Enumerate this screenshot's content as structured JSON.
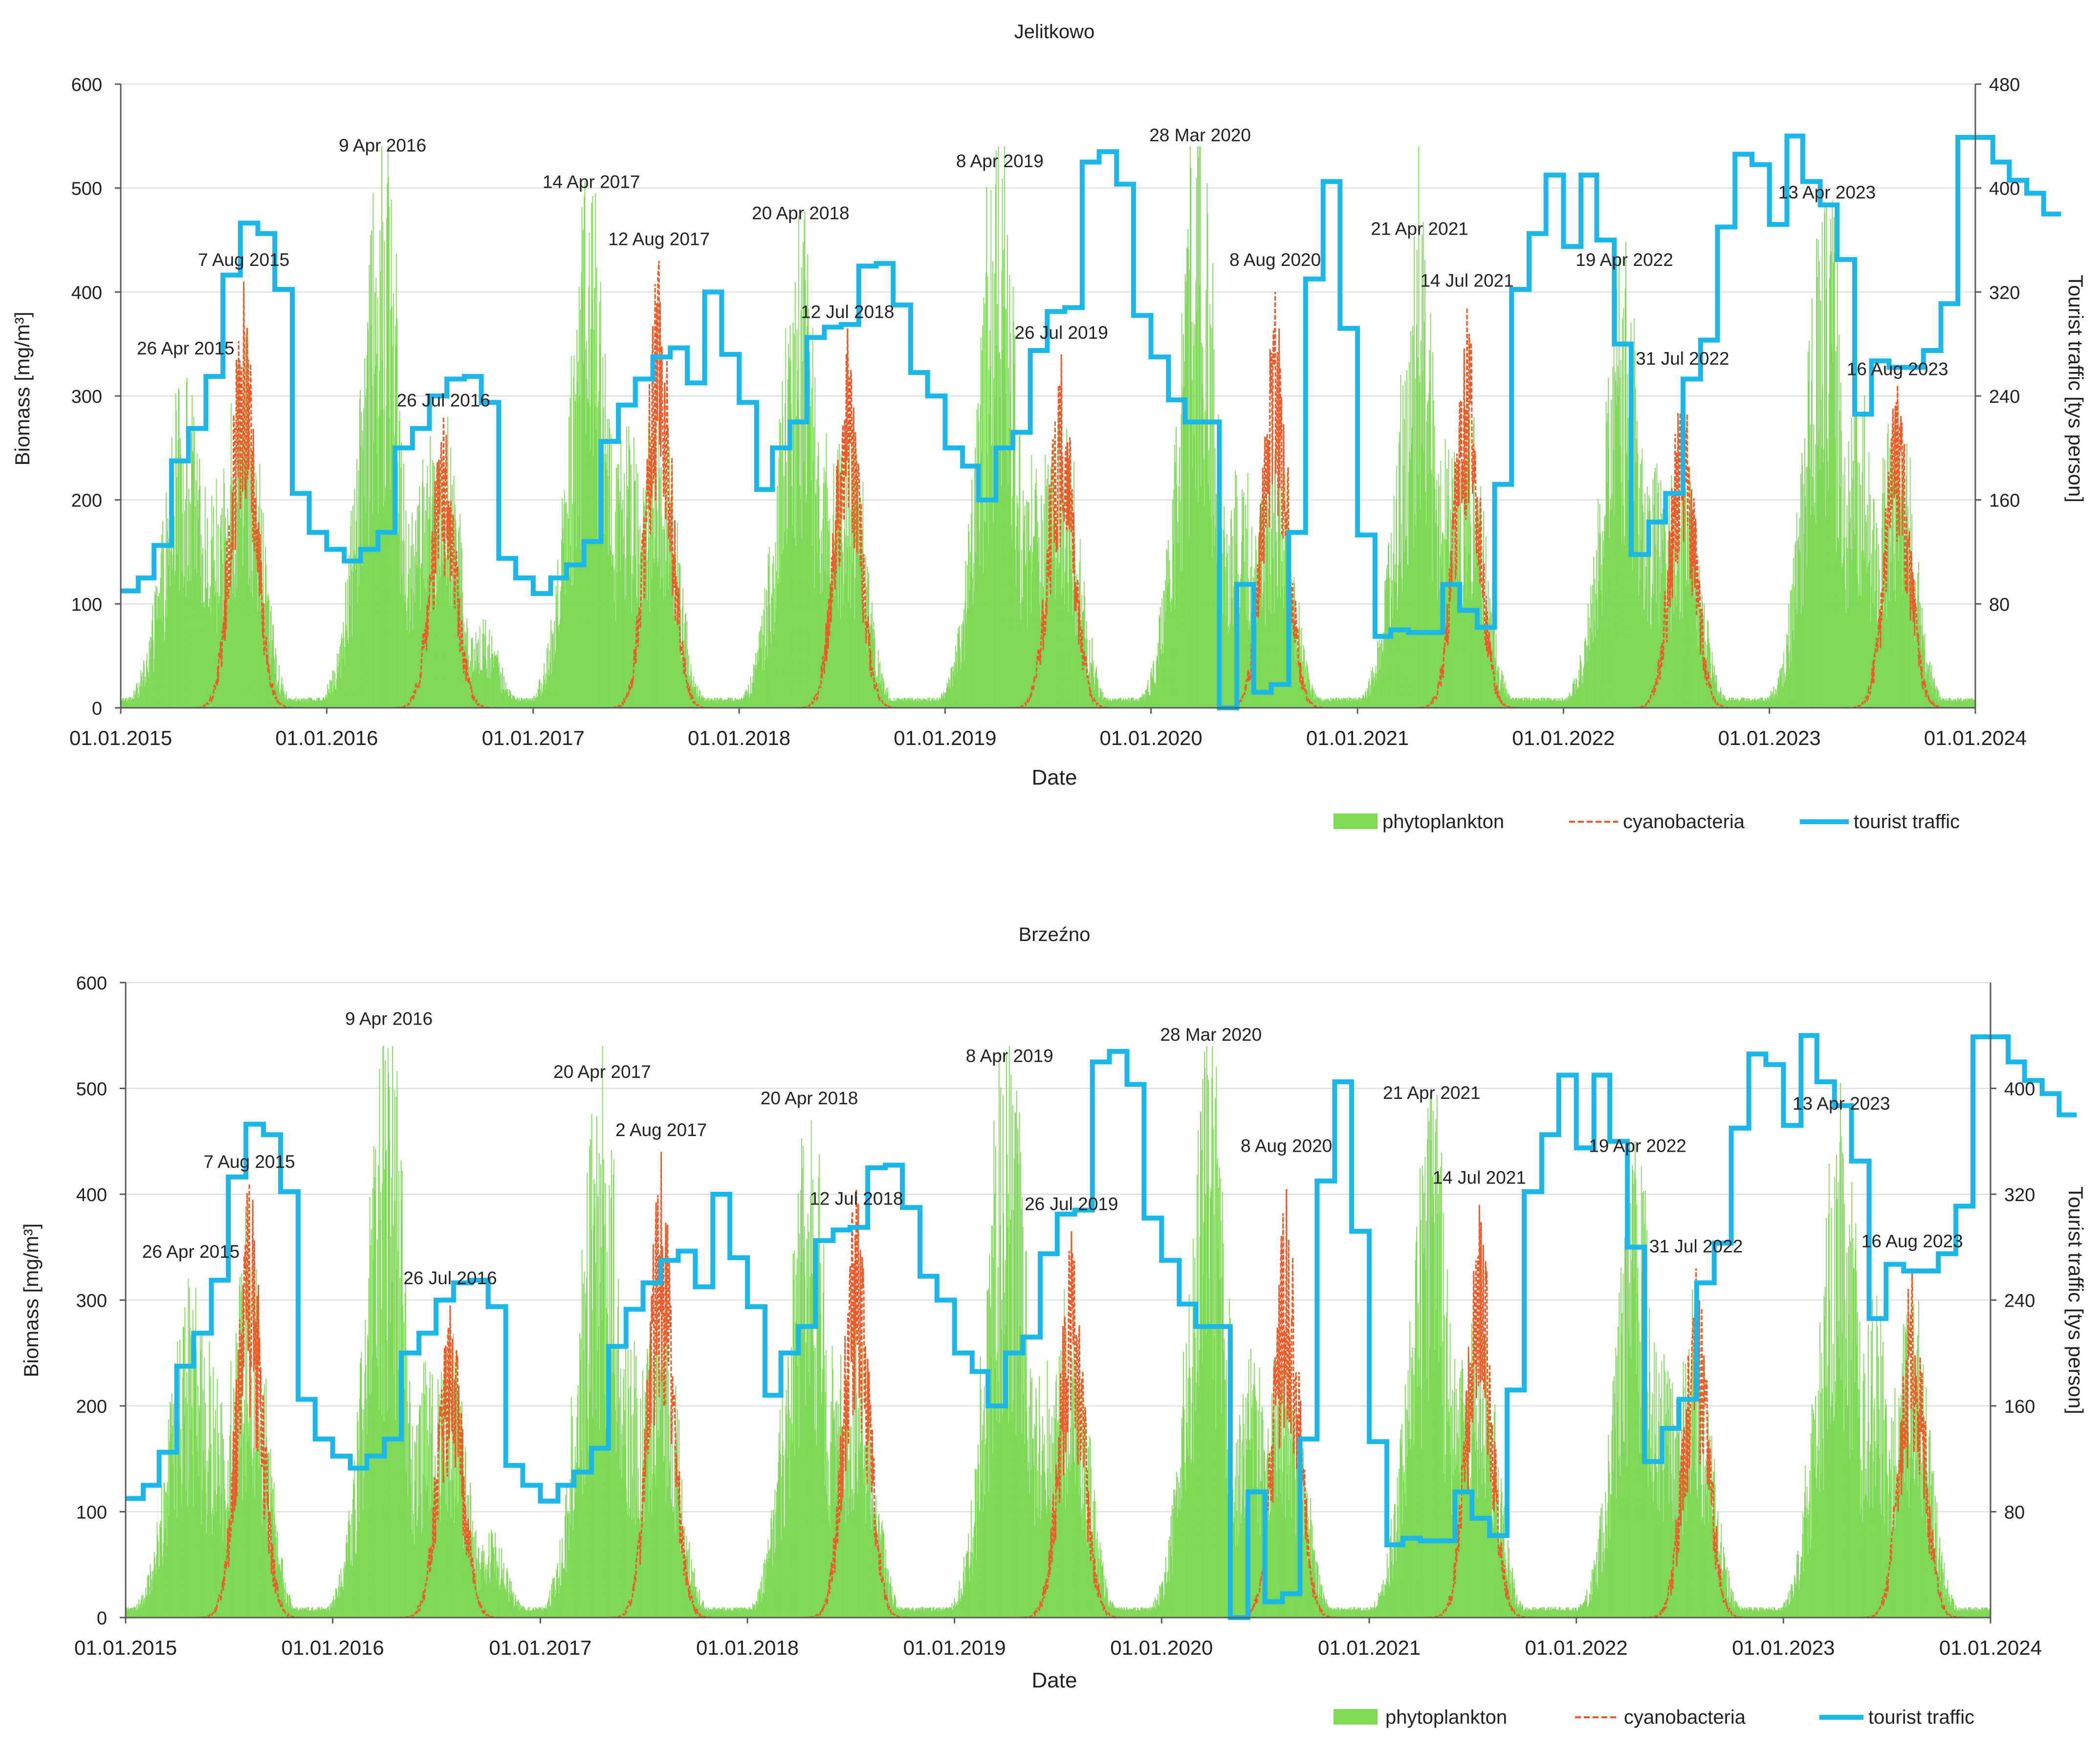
{
  "chart_data": [
    {
      "type": "area",
      "title": "Jelitkowo",
      "xlabel": "Date",
      "ylabel": "Biomass  [mg/m³]",
      "y2label": "Tourist traffic [tys person]",
      "x_ticks": [
        "01.01.2015",
        "01.01.2016",
        "01.01.2017",
        "01.01.2018",
        "01.01.2019",
        "01.01.2020",
        "01.01.2021",
        "01.01.2022",
        "01.01.2023",
        "01.01.2024"
      ],
      "x_range": [
        "2015-01-01",
        "2024-01-01"
      ],
      "ylim": [
        0,
        600
      ],
      "y_ticks": [
        0,
        100,
        200,
        300,
        400,
        500,
        600
      ],
      "y2lim": [
        0,
        480
      ],
      "y2_ticks": [
        80,
        160,
        240,
        320,
        400,
        480
      ],
      "grid": "horizontal",
      "legend_position": "bottom-right",
      "legend": [
        "phytoplankton",
        "cyanobacteria",
        "tourist traffic"
      ],
      "series": [
        {
          "name": "phytoplankton",
          "color": "#7ED957",
          "type": "area",
          "peaks": [
            {
              "date": "2015-04-26",
              "value": 300
            },
            {
              "date": "2015-06-10",
              "value": 210
            },
            {
              "date": "2015-08-07",
              "value": 330
            },
            {
              "date": "2016-04-09",
              "value": 525
            },
            {
              "date": "2016-06-20",
              "value": 230
            },
            {
              "date": "2016-07-26",
              "value": 250
            },
            {
              "date": "2016-10-01",
              "value": 80
            },
            {
              "date": "2017-04-14",
              "value": 490
            },
            {
              "date": "2017-06-15",
              "value": 260
            },
            {
              "date": "2017-08-12",
              "value": 290
            },
            {
              "date": "2018-04-20",
              "value": 450
            },
            {
              "date": "2018-06-10",
              "value": 250
            },
            {
              "date": "2018-07-12",
              "value": 260
            },
            {
              "date": "2019-04-08",
              "value": 500
            },
            {
              "date": "2019-06-15",
              "value": 240
            },
            {
              "date": "2019-07-26",
              "value": 270
            },
            {
              "date": "2020-03-28",
              "value": 525
            },
            {
              "date": "2020-06-10",
              "value": 220
            },
            {
              "date": "2020-08-08",
              "value": 250
            },
            {
              "date": "2021-04-21",
              "value": 435
            },
            {
              "date": "2021-06-10",
              "value": 240
            },
            {
              "date": "2021-07-14",
              "value": 280
            },
            {
              "date": "2022-04-19",
              "value": 415
            },
            {
              "date": "2022-06-10",
              "value": 220
            },
            {
              "date": "2022-07-31",
              "value": 240
            },
            {
              "date": "2023-04-13",
              "value": 470
            },
            {
              "date": "2023-06-10",
              "value": 290
            },
            {
              "date": "2023-08-16",
              "value": 280
            }
          ]
        },
        {
          "name": "cyanobacteria",
          "color": "#F05A28",
          "type": "line",
          "peaks": [
            {
              "date": "2015-08-07",
              "value": 410
            },
            {
              "date": "2016-07-26",
              "value": 280
            },
            {
              "date": "2017-08-12",
              "value": 430
            },
            {
              "date": "2018-07-12",
              "value": 365
            },
            {
              "date": "2019-07-26",
              "value": 340
            },
            {
              "date": "2020-08-08",
              "value": 400
            },
            {
              "date": "2021-07-14",
              "value": 385
            },
            {
              "date": "2022-07-31",
              "value": 315
            },
            {
              "date": "2023-08-16",
              "value": 310
            }
          ]
        },
        {
          "name": "tourist traffic",
          "color": "#1BB7E8",
          "type": "step",
          "monthly": [
            [
              90,
              100,
              125,
              190,
              215,
              255,
              333,
              373,
              365,
              322,
              165,
              135
            ],
            [
              122,
              113,
              122,
              135,
              200,
              215,
              240,
              253,
              255,
              235,
              115,
              100
            ],
            [
              88,
              100,
              110,
              128,
              205,
              233,
              253,
              270,
              277,
              250,
              320,
              272
            ],
            [
              235,
              168,
              200,
              220,
              285,
              293,
              295,
              340,
              342,
              310,
              258,
              240
            ],
            [
              200,
              186,
              160,
              200,
              212,
              275,
              305,
              308,
              420,
              428,
              403,
              302
            ],
            [
              270,
              237,
              220,
              220,
              0,
              95,
              12,
              18,
              135,
              330,
              405,
              292
            ],
            [
              133,
              55,
              60,
              58,
              58,
              95,
              75,
              62,
              172,
              322,
              365,
              410
            ],
            [
              355,
              410,
              360,
              280,
              118,
              143,
              165,
              253,
              283,
              370,
              426,
              418
            ],
            [
              372,
              440,
              405,
              387,
              345,
              226,
              267,
              262,
              262,
              275,
              311,
              439
            ],
            [
              439,
              420,
              406,
              396,
              380
            ]
          ]
        }
      ],
      "annotations": [
        {
          "text": "26 Apr 2015",
          "date": "2015-04-26",
          "value": 340
        },
        {
          "text": "7 Aug 2015",
          "date": "2015-08-07",
          "value": 425
        },
        {
          "text": "9 Apr 2016",
          "date": "2016-04-09",
          "value": 535
        },
        {
          "text": "26 Jul 2016",
          "date": "2016-07-26",
          "value": 290
        },
        {
          "text": "14 Apr 2017",
          "date": "2017-04-14",
          "value": 500
        },
        {
          "text": "12 Aug 2017",
          "date": "2017-08-12",
          "value": 445
        },
        {
          "text": "20 Apr 2018",
          "date": "2018-04-20",
          "value": 470
        },
        {
          "text": "12 Jul 2018",
          "date": "2018-07-12",
          "value": 375
        },
        {
          "text": "8 Apr 2019",
          "date": "2019-04-08",
          "value": 520
        },
        {
          "text": "26 Jul 2019",
          "date": "2019-07-26",
          "value": 355
        },
        {
          "text": "28 Mar 2020",
          "date": "2020-03-28",
          "value": 545
        },
        {
          "text": "8 Aug 2020",
          "date": "2020-08-08",
          "value": 425
        },
        {
          "text": "21 Apr 2021",
          "date": "2021-04-21",
          "value": 455
        },
        {
          "text": "14 Jul 2021",
          "date": "2021-07-14",
          "value": 405
        },
        {
          "text": "19 Apr 2022",
          "date": "2022-04-19",
          "value": 425
        },
        {
          "text": "31 Jul 2022",
          "date": "2022-07-31",
          "value": 330
        },
        {
          "text": "13 Apr 2023",
          "date": "2023-04-13",
          "value": 490
        },
        {
          "text": "16 Aug 2023",
          "date": "2023-08-16",
          "value": 320
        }
      ]
    },
    {
      "type": "area",
      "title": "Brzeźno",
      "xlabel": "Date",
      "ylabel": "Biomass  [mg/m³]",
      "y2label": "Tourist traffic [tys person]",
      "x_ticks": [
        "01.01.2015",
        "01.01.2016",
        "01.01.2017",
        "01.01.2018",
        "01.01.2019",
        "01.01.2020",
        "01.01.2021",
        "01.01.2022",
        "01.01.2023",
        "01.01.2024"
      ],
      "x_range": [
        "2015-01-01",
        "2024-01-01"
      ],
      "ylim": [
        0,
        600
      ],
      "y_ticks": [
        0,
        100,
        200,
        300,
        400,
        500,
        600
      ],
      "y2lim": [
        0,
        480
      ],
      "y2_ticks": [
        80,
        160,
        240,
        320,
        400
      ],
      "grid": "horizontal",
      "legend_position": "bottom-right",
      "legend": [
        "phytoplankton",
        "cyanobacteria",
        "tourist traffic"
      ],
      "series": [
        {
          "name": "phytoplankton",
          "color": "#7ED957",
          "type": "area",
          "peaks": [
            {
              "date": "2015-04-26",
              "value": 300
            },
            {
              "date": "2015-06-10",
              "value": 220
            },
            {
              "date": "2015-08-07",
              "value": 330
            },
            {
              "date": "2016-04-09",
              "value": 540
            },
            {
              "date": "2016-06-20",
              "value": 230
            },
            {
              "date": "2016-07-26",
              "value": 250
            },
            {
              "date": "2016-10-01",
              "value": 80
            },
            {
              "date": "2017-04-20",
              "value": 495
            },
            {
              "date": "2017-06-15",
              "value": 250
            },
            {
              "date": "2017-08-02",
              "value": 290
            },
            {
              "date": "2018-04-20",
              "value": 470
            },
            {
              "date": "2018-06-10",
              "value": 240
            },
            {
              "date": "2018-07-12",
              "value": 260
            },
            {
              "date": "2019-04-08",
              "value": 510
            },
            {
              "date": "2019-06-15",
              "value": 240
            },
            {
              "date": "2019-07-26",
              "value": 270
            },
            {
              "date": "2020-03-28",
              "value": 525
            },
            {
              "date": "2020-06-10",
              "value": 230
            },
            {
              "date": "2020-08-08",
              "value": 250
            },
            {
              "date": "2021-04-21",
              "value": 470
            },
            {
              "date": "2021-06-10",
              "value": 240
            },
            {
              "date": "2021-07-14",
              "value": 280
            },
            {
              "date": "2022-04-19",
              "value": 420
            },
            {
              "date": "2022-06-10",
              "value": 230
            },
            {
              "date": "2022-07-31",
              "value": 250
            },
            {
              "date": "2023-04-13",
              "value": 470
            },
            {
              "date": "2023-06-10",
              "value": 280
            },
            {
              "date": "2023-08-16",
              "value": 280
            }
          ]
        },
        {
          "name": "cyanobacteria",
          "color": "#F05A28",
          "type": "line",
          "peaks": [
            {
              "date": "2015-08-07",
              "value": 410
            },
            {
              "date": "2016-07-26",
              "value": 295
            },
            {
              "date": "2017-08-02",
              "value": 440
            },
            {
              "date": "2018-07-12",
              "value": 405
            },
            {
              "date": "2019-07-26",
              "value": 365
            },
            {
              "date": "2020-08-08",
              "value": 405
            },
            {
              "date": "2021-07-14",
              "value": 390
            },
            {
              "date": "2022-07-31",
              "value": 330
            },
            {
              "date": "2023-08-16",
              "value": 330
            }
          ]
        },
        {
          "name": "tourist traffic",
          "color": "#1BB7E8",
          "type": "step",
          "monthly": [
            [
              90,
              100,
              125,
              190,
              215,
              255,
              333,
              373,
              365,
              322,
              165,
              135
            ],
            [
              122,
              113,
              122,
              135,
              200,
              215,
              240,
              253,
              255,
              235,
              115,
              100
            ],
            [
              88,
              100,
              110,
              128,
              205,
              233,
              253,
              270,
              277,
              250,
              320,
              272
            ],
            [
              235,
              168,
              200,
              220,
              285,
              293,
              295,
              340,
              342,
              310,
              258,
              240
            ],
            [
              200,
              186,
              160,
              200,
              212,
              275,
              305,
              308,
              420,
              428,
              403,
              302
            ],
            [
              270,
              237,
              220,
              220,
              0,
              95,
              12,
              18,
              135,
              330,
              405,
              292
            ],
            [
              133,
              55,
              60,
              58,
              58,
              95,
              75,
              62,
              172,
              322,
              365,
              410
            ],
            [
              355,
              410,
              360,
              280,
              118,
              143,
              165,
              253,
              283,
              370,
              426,
              418
            ],
            [
              372,
              440,
              405,
              387,
              345,
              226,
              267,
              262,
              262,
              275,
              311,
              439
            ],
            [
              439,
              420,
              406,
              396,
              380
            ]
          ]
        }
      ],
      "annotations": [
        {
          "text": "26 Apr 2015",
          "date": "2015-04-26",
          "value": 340
        },
        {
          "text": "7 Aug 2015",
          "date": "2015-08-07",
          "value": 425
        },
        {
          "text": "9 Apr 2016",
          "date": "2016-04-09",
          "value": 560
        },
        {
          "text": "26 Jul 2016",
          "date": "2016-07-26",
          "value": 315
        },
        {
          "text": "20 Apr 2017",
          "date": "2017-04-20",
          "value": 510
        },
        {
          "text": "2 Aug 2017",
          "date": "2017-08-02",
          "value": 455
        },
        {
          "text": "20 Apr 2018",
          "date": "2018-04-20",
          "value": 485
        },
        {
          "text": "12 Jul 2018",
          "date": "2018-07-12",
          "value": 390
        },
        {
          "text": "8 Apr 2019",
          "date": "2019-04-08",
          "value": 525
        },
        {
          "text": "26 Jul 2019",
          "date": "2019-07-26",
          "value": 385
        },
        {
          "text": "28 Mar 2020",
          "date": "2020-03-28",
          "value": 545
        },
        {
          "text": "8 Aug 2020",
          "date": "2020-08-08",
          "value": 440
        },
        {
          "text": "21 Apr 2021",
          "date": "2021-04-21",
          "value": 490
        },
        {
          "text": "14 Jul 2021",
          "date": "2021-07-14",
          "value": 410
        },
        {
          "text": "19 Apr 2022",
          "date": "2022-04-19",
          "value": 440
        },
        {
          "text": "31 Jul 2022",
          "date": "2022-07-31",
          "value": 345
        },
        {
          "text": "13 Apr 2023",
          "date": "2023-04-13",
          "value": 480
        },
        {
          "text": "16 Aug 2023",
          "date": "2023-08-16",
          "value": 350
        }
      ]
    }
  ]
}
